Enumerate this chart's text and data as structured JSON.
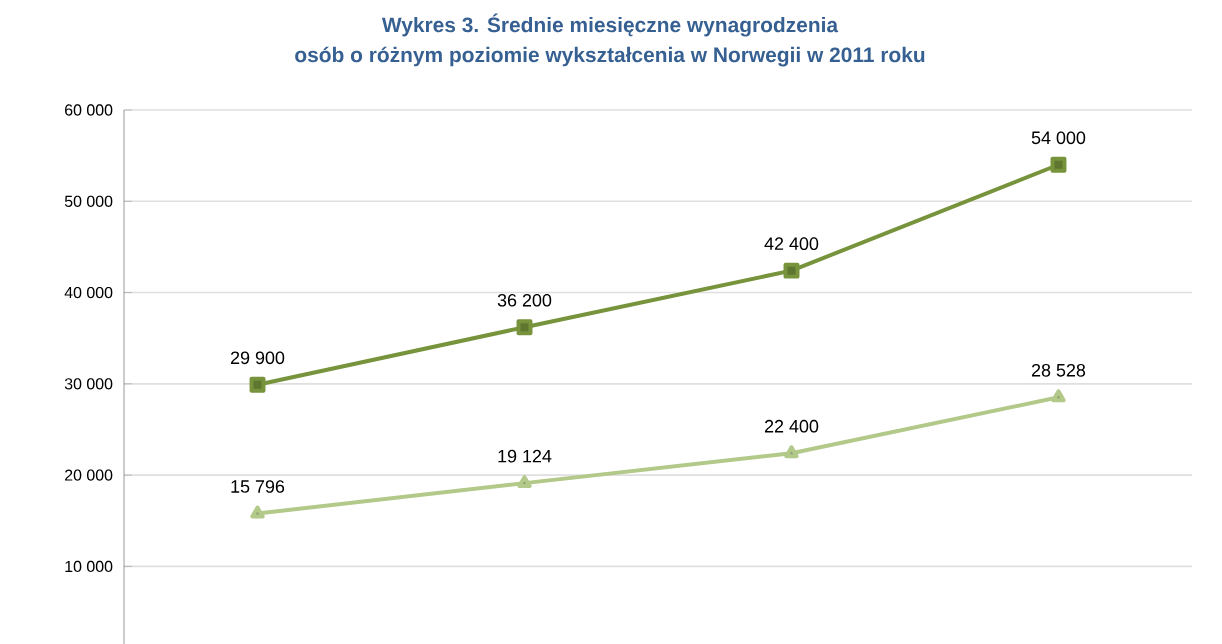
{
  "chart_data": {
    "type": "line",
    "title": "Wykres 3. Średnie miesięczne wynagrodzenia\nosób o różnym poziomie wykształcenia w Norwegii w 2011 roku",
    "categories": [
      null,
      null,
      null,
      null
    ],
    "series": [
      {
        "color": "#77933c",
        "marker": "square",
        "values": [
          29900,
          36200,
          42400,
          54000
        ],
        "value_labels": [
          "29 900",
          "36 200",
          "42 400",
          "54 000"
        ]
      },
      {
        "color": "#b3c98a",
        "marker": "triangle",
        "values": [
          15796,
          19124,
          22400,
          28528
        ],
        "value_labels": [
          "15 796",
          "19 124",
          "22 400",
          "28 528"
        ]
      }
    ],
    "ylim": [
      1500,
      60000
    ],
    "yticks": [
      {
        "value": 10000,
        "label": "10 000"
      },
      {
        "value": 20000,
        "label": "20 000"
      },
      {
        "value": 30000,
        "label": "30 000"
      },
      {
        "value": 40000,
        "label": "40 000"
      },
      {
        "value": 50000,
        "label": "50 000"
      },
      {
        "value": 60000,
        "label": "60 000"
      }
    ],
    "grid": "y",
    "tick_labels": "y"
  }
}
